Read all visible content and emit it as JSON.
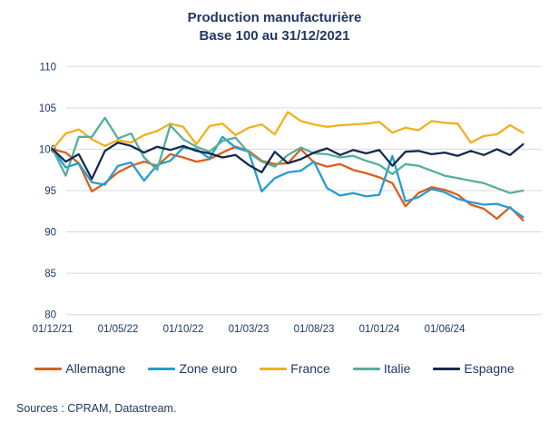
{
  "title": {
    "line1": "Production manufacturière",
    "line2": "Base 100 au 31/12/2021"
  },
  "sources_text": "Sources : CPRAM, Datastream.",
  "colors": {
    "text_navy": "#1F3864",
    "gridline": "#D9D9D9",
    "allemagne": "#D95F1B",
    "zone_euro": "#259BD5",
    "france": "#F2B01E",
    "italie": "#54AF9B",
    "espagne": "#16294E"
  },
  "chart_data": {
    "type": "line",
    "title": "Production manufacturière — Base 100 au 31/12/2021",
    "xlabel": "",
    "ylabel": "",
    "ylim": [
      80,
      110
    ],
    "y_ticks": [
      110,
      105,
      100,
      95,
      90,
      85,
      80
    ],
    "grid": "horizontal",
    "legend_position": "bottom",
    "x": [
      "2021-12",
      "2022-01",
      "2022-02",
      "2022-03",
      "2022-04",
      "2022-05",
      "2022-06",
      "2022-07",
      "2022-08",
      "2022-09",
      "2022-10",
      "2022-11",
      "2022-12",
      "2023-01",
      "2023-02",
      "2023-03",
      "2023-04",
      "2023-05",
      "2023-06",
      "2023-07",
      "2023-08",
      "2023-09",
      "2023-10",
      "2023-11",
      "2023-12",
      "2024-01",
      "2024-02",
      "2024-03",
      "2024-04",
      "2024-05",
      "2024-06",
      "2024-07",
      "2024-08",
      "2024-09",
      "2024-10",
      "2024-11",
      "2024-12"
    ],
    "x_tick_labels": [
      "01/12/21",
      "01/05/22",
      "01/10/22",
      "01/03/23",
      "01/08/23",
      "01/01/24",
      "01/06/24"
    ],
    "x_tick_indices": [
      0,
      5,
      10,
      15,
      20,
      25,
      30
    ],
    "series": [
      {
        "name": "Allemagne",
        "color_key": "allemagne",
        "values": [
          100,
          99.6,
          98.3,
          94.9,
          95.9,
          97.2,
          98.0,
          98.5,
          98.0,
          99.4,
          99.0,
          98.5,
          98.8,
          99.6,
          100.3,
          99.8,
          98.6,
          98.2,
          98.3,
          100.0,
          98.4,
          97.9,
          98.2,
          97.5,
          97.1,
          96.6,
          95.9,
          93.1,
          94.7,
          95.4,
          95.1,
          94.5,
          93.3,
          92.8,
          91.6,
          93.0,
          91.4
        ]
      },
      {
        "name": "Zone euro",
        "color_key": "zone_euro",
        "values": [
          100,
          97.8,
          98.3,
          96.0,
          95.7,
          98.0,
          98.4,
          96.2,
          98.1,
          98.6,
          100.2,
          100.0,
          98.9,
          101.5,
          100.2,
          99.7,
          94.9,
          96.5,
          97.2,
          97.4,
          98.5,
          95.3,
          94.4,
          94.7,
          94.3,
          94.5,
          99.2,
          93.7,
          94.2,
          95.2,
          94.8,
          94.0,
          93.6,
          93.3,
          93.4,
          92.9,
          91.8
        ]
      },
      {
        "name": "France",
        "color_key": "france",
        "values": [
          100,
          101.9,
          102.4,
          101.2,
          100.4,
          101.1,
          100.8,
          101.7,
          102.2,
          103.1,
          102.7,
          100.6,
          102.8,
          103.1,
          101.7,
          102.6,
          103.0,
          101.8,
          104.5,
          103.4,
          103.0,
          102.7,
          102.9,
          103.0,
          103.1,
          103.3,
          102.0,
          102.6,
          102.3,
          103.4,
          103.2,
          103.1,
          100.8,
          101.6,
          101.8,
          102.9,
          102.0
        ]
      },
      {
        "name": "Italie",
        "color_key": "italie",
        "values": [
          100,
          96.8,
          101.5,
          101.5,
          103.8,
          101.3,
          101.9,
          99.0,
          97.5,
          102.9,
          101.2,
          100.3,
          99.7,
          101.0,
          101.4,
          99.6,
          98.5,
          97.9,
          99.3,
          100.2,
          99.5,
          99.4,
          99.0,
          99.2,
          98.6,
          98.1,
          97.0,
          98.2,
          98.0,
          97.4,
          96.8,
          96.5,
          96.2,
          95.9,
          95.3,
          94.7,
          95.0
        ]
      },
      {
        "name": "Espagne",
        "color_key": "espagne",
        "values": [
          100,
          98.5,
          99.4,
          96.4,
          99.8,
          100.8,
          100.4,
          99.6,
          100.3,
          99.9,
          100.4,
          99.8,
          99.5,
          99.0,
          99.3,
          98.1,
          97.2,
          99.7,
          98.3,
          98.8,
          99.6,
          100.1,
          99.3,
          99.9,
          99.5,
          99.9,
          98.0,
          99.7,
          99.8,
          99.4,
          99.6,
          99.2,
          99.8,
          99.3,
          100.0,
          99.3,
          100.6
        ]
      }
    ]
  }
}
